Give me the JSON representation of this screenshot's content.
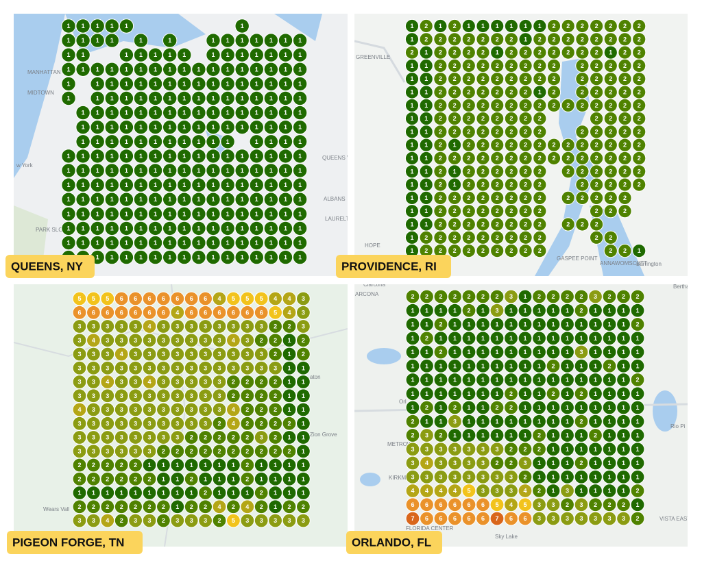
{
  "colors": [
    "#1f6a00",
    "#4f8200",
    "#8b9c12",
    "#b4a616",
    "#f2c31c",
    "#ea922a",
    "#d9661b"
  ],
  "panels": [
    {
      "label": "QUEENS, NY",
      "map_labels": [
        "MANHATTAN",
        "MIDTOWN",
        "PARK SLOPE",
        "w York",
        "QUEENS VILL",
        "ALBANS",
        "LAURELTON"
      ],
      "grid": [
        [
          1,
          1,
          1,
          1,
          1,
          null,
          null,
          null,
          null,
          null,
          null,
          null,
          1,
          null,
          null,
          null,
          null
        ],
        [
          1,
          1,
          1,
          1,
          null,
          1,
          null,
          1,
          null,
          null,
          1,
          1,
          1,
          1,
          1,
          1,
          1
        ],
        [
          1,
          1,
          null,
          null,
          1,
          1,
          1,
          1,
          1,
          null,
          1,
          1,
          1,
          1,
          1,
          1,
          1
        ],
        [
          1,
          1,
          1,
          1,
          1,
          1,
          1,
          1,
          1,
          1,
          1,
          1,
          1,
          1,
          1,
          1,
          1
        ],
        [
          1,
          null,
          1,
          1,
          1,
          1,
          1,
          1,
          1,
          1,
          1,
          1,
          1,
          1,
          1,
          1,
          1
        ],
        [
          1,
          null,
          1,
          1,
          1,
          1,
          1,
          1,
          1,
          1,
          1,
          1,
          1,
          1,
          1,
          1,
          1
        ],
        [
          null,
          1,
          1,
          1,
          1,
          1,
          1,
          1,
          1,
          1,
          1,
          1,
          1,
          1,
          1,
          1,
          1
        ],
        [
          null,
          1,
          1,
          1,
          1,
          1,
          1,
          1,
          1,
          1,
          1,
          1,
          1,
          1,
          1,
          1,
          1
        ],
        [
          null,
          1,
          1,
          1,
          1,
          1,
          1,
          1,
          1,
          1,
          1,
          1,
          null,
          1,
          1,
          1,
          1
        ],
        [
          1,
          1,
          1,
          1,
          1,
          1,
          1,
          1,
          1,
          1,
          1,
          1,
          1,
          1,
          1,
          1,
          1
        ],
        [
          1,
          1,
          1,
          1,
          1,
          1,
          1,
          1,
          1,
          1,
          1,
          1,
          1,
          1,
          1,
          1,
          1
        ],
        [
          1,
          1,
          1,
          1,
          1,
          1,
          1,
          1,
          1,
          1,
          1,
          1,
          1,
          1,
          1,
          1,
          1
        ],
        [
          1,
          1,
          1,
          1,
          1,
          1,
          1,
          1,
          1,
          1,
          1,
          1,
          1,
          1,
          1,
          1,
          1
        ],
        [
          1,
          1,
          1,
          1,
          1,
          1,
          1,
          1,
          1,
          1,
          1,
          1,
          1,
          1,
          1,
          1,
          1
        ],
        [
          1,
          1,
          1,
          1,
          1,
          1,
          1,
          1,
          1,
          1,
          1,
          1,
          1,
          1,
          1,
          1,
          1
        ],
        [
          1,
          1,
          1,
          1,
          1,
          1,
          1,
          1,
          1,
          1,
          1,
          1,
          1,
          1,
          1,
          1,
          1
        ],
        [
          1,
          1,
          1,
          1,
          1,
          1,
          1,
          1,
          1,
          1,
          1,
          1,
          1,
          1,
          1,
          1,
          1
        ]
      ]
    },
    {
      "label": "PROVIDENCE, RI",
      "map_labels": [
        "GREENVILLE",
        "HOPE",
        "GASPEE POINT",
        "ANNAWOMSCUTT",
        "Barrington"
      ],
      "grid": [
        [
          1,
          2,
          1,
          2,
          1,
          1,
          1,
          1,
          1,
          1,
          2,
          2,
          2,
          2,
          2,
          2,
          2
        ],
        [
          1,
          2,
          2,
          2,
          2,
          2,
          2,
          2,
          1,
          2,
          2,
          2,
          2,
          2,
          2,
          2,
          2
        ],
        [
          2,
          1,
          2,
          2,
          2,
          2,
          1,
          2,
          2,
          2,
          2,
          2,
          2,
          2,
          1,
          2,
          2
        ],
        [
          1,
          1,
          2,
          2,
          2,
          2,
          2,
          2,
          2,
          2,
          2,
          null,
          2,
          2,
          2,
          2,
          2
        ],
        [
          1,
          1,
          2,
          2,
          2,
          2,
          2,
          2,
          2,
          2,
          2,
          null,
          2,
          2,
          2,
          2,
          2
        ],
        [
          1,
          1,
          2,
          2,
          2,
          2,
          2,
          2,
          2,
          1,
          2,
          null,
          2,
          2,
          2,
          2,
          2
        ],
        [
          1,
          1,
          2,
          2,
          2,
          2,
          2,
          2,
          2,
          2,
          2,
          2,
          2,
          2,
          2,
          2,
          2
        ],
        [
          1,
          1,
          2,
          2,
          2,
          2,
          2,
          2,
          2,
          2,
          null,
          null,
          null,
          2,
          2,
          2,
          2
        ],
        [
          1,
          1,
          2,
          2,
          2,
          2,
          2,
          2,
          2,
          2,
          null,
          null,
          2,
          2,
          2,
          2,
          2
        ],
        [
          1,
          1,
          2,
          1,
          2,
          2,
          2,
          2,
          2,
          2,
          2,
          2,
          2,
          2,
          2,
          2,
          2
        ],
        [
          1,
          1,
          2,
          2,
          2,
          2,
          2,
          2,
          2,
          2,
          2,
          2,
          2,
          2,
          2,
          2,
          2
        ],
        [
          1,
          1,
          2,
          1,
          2,
          2,
          2,
          2,
          2,
          2,
          null,
          2,
          2,
          2,
          2,
          2,
          2
        ],
        [
          1,
          1,
          2,
          1,
          2,
          2,
          2,
          2,
          2,
          2,
          null,
          null,
          2,
          2,
          2,
          2,
          2
        ],
        [
          1,
          1,
          2,
          2,
          2,
          2,
          2,
          2,
          2,
          2,
          null,
          2,
          2,
          2,
          2,
          2,
          null
        ],
        [
          1,
          1,
          2,
          2,
          2,
          2,
          2,
          2,
          2,
          2,
          null,
          null,
          null,
          2,
          2,
          2,
          null
        ],
        [
          1,
          1,
          2,
          2,
          2,
          2,
          2,
          2,
          2,
          2,
          null,
          2,
          2,
          2,
          null,
          null,
          null
        ],
        [
          1,
          2,
          2,
          2,
          2,
          2,
          2,
          2,
          2,
          2,
          null,
          null,
          null,
          2,
          2,
          null,
          null
        ],
        [
          1,
          2,
          2,
          2,
          2,
          2,
          2,
          2,
          2,
          2,
          null,
          null,
          null,
          null,
          2,
          2,
          1
        ]
      ]
    },
    {
      "label": "PIGEON FORGE, TN",
      "map_labels": [
        "aton",
        "Zion Grove",
        "Wears Vall"
      ],
      "grid": [
        [
          5,
          5,
          5,
          6,
          6,
          6,
          6,
          6,
          6,
          6,
          4,
          5,
          5,
          5,
          4,
          4,
          3
        ],
        [
          6,
          6,
          6,
          6,
          6,
          6,
          6,
          4,
          6,
          6,
          6,
          6,
          6,
          6,
          5,
          4,
          3
        ],
        [
          3,
          3,
          3,
          3,
          3,
          4,
          3,
          3,
          3,
          3,
          3,
          3,
          3,
          3,
          2,
          2,
          3
        ],
        [
          3,
          4,
          3,
          3,
          3,
          3,
          3,
          3,
          3,
          3,
          3,
          4,
          3,
          2,
          2,
          1,
          2
        ],
        [
          3,
          3,
          3,
          4,
          3,
          3,
          3,
          3,
          3,
          3,
          3,
          3,
          3,
          3,
          2,
          1,
          2
        ],
        [
          3,
          3,
          3,
          3,
          3,
          3,
          3,
          3,
          3,
          3,
          3,
          3,
          3,
          3,
          3,
          1,
          1
        ],
        [
          3,
          3,
          4,
          3,
          3,
          4,
          3,
          3,
          3,
          3,
          3,
          2,
          2,
          2,
          2,
          1,
          1
        ],
        [
          3,
          3,
          3,
          3,
          3,
          3,
          3,
          3,
          3,
          3,
          3,
          2,
          2,
          2,
          2,
          1,
          1
        ],
        [
          4,
          3,
          3,
          3,
          3,
          3,
          3,
          3,
          3,
          3,
          3,
          4,
          2,
          2,
          2,
          1,
          1
        ],
        [
          3,
          3,
          3,
          3,
          3,
          3,
          3,
          3,
          3,
          3,
          2,
          4,
          2,
          2,
          2,
          2,
          1
        ],
        [
          3,
          3,
          3,
          3,
          3,
          3,
          3,
          3,
          2,
          2,
          2,
          2,
          2,
          3,
          2,
          1,
          1
        ],
        [
          3,
          3,
          3,
          3,
          3,
          3,
          2,
          2,
          2,
          2,
          2,
          2,
          2,
          2,
          2,
          2,
          1
        ],
        [
          2,
          2,
          2,
          2,
          2,
          1,
          1,
          1,
          1,
          1,
          1,
          1,
          2,
          1,
          1,
          1,
          1
        ],
        [
          2,
          2,
          2,
          2,
          2,
          2,
          1,
          1,
          2,
          1,
          1,
          1,
          2,
          1,
          1,
          1,
          1
        ],
        [
          1,
          1,
          1,
          1,
          1,
          1,
          1,
          1,
          1,
          2,
          1,
          1,
          1,
          2,
          1,
          1,
          1
        ],
        [
          2,
          2,
          2,
          2,
          2,
          2,
          2,
          1,
          2,
          2,
          4,
          2,
          4,
          2,
          1,
          2,
          2
        ],
        [
          3,
          3,
          4,
          2,
          3,
          3,
          2,
          3,
          3,
          3,
          2,
          5,
          3,
          3,
          3,
          3,
          3
        ]
      ]
    },
    {
      "label": "ORLANDO, FL",
      "map_labels": [
        "Clarcona",
        "ARCONA",
        "Bertha",
        "Orl",
        "Rio Pi",
        "METROW",
        "KIRKMA",
        "FLORIDA CENTER",
        "Sky Lake",
        "VISTA EAST"
      ],
      "grid": [
        [
          2,
          2,
          2,
          2,
          2,
          2,
          2,
          3,
          1,
          2,
          2,
          2,
          2,
          3,
          2,
          2,
          2
        ],
        [
          1,
          1,
          1,
          1,
          2,
          1,
          3,
          1,
          1,
          1,
          1,
          1,
          2,
          1,
          1,
          1,
          1
        ],
        [
          1,
          1,
          2,
          1,
          1,
          1,
          1,
          1,
          1,
          1,
          1,
          1,
          1,
          1,
          1,
          1,
          2
        ],
        [
          1,
          2,
          1,
          1,
          1,
          1,
          1,
          1,
          1,
          1,
          1,
          1,
          1,
          1,
          1,
          1,
          1
        ],
        [
          1,
          1,
          2,
          1,
          1,
          1,
          1,
          1,
          1,
          1,
          1,
          1,
          3,
          1,
          1,
          1,
          1
        ],
        [
          1,
          1,
          1,
          1,
          1,
          1,
          1,
          1,
          1,
          1,
          2,
          1,
          1,
          1,
          2,
          1,
          1
        ],
        [
          1,
          1,
          1,
          1,
          1,
          1,
          1,
          1,
          1,
          1,
          1,
          1,
          1,
          1,
          1,
          1,
          2
        ],
        [
          1,
          1,
          1,
          1,
          1,
          1,
          1,
          2,
          1,
          1,
          2,
          1,
          2,
          1,
          1,
          1,
          1
        ],
        [
          1,
          2,
          1,
          2,
          1,
          1,
          2,
          2,
          1,
          1,
          1,
          1,
          1,
          1,
          1,
          1,
          1
        ],
        [
          2,
          1,
          1,
          3,
          1,
          1,
          1,
          1,
          1,
          1,
          1,
          1,
          2,
          1,
          1,
          1,
          1
        ],
        [
          2,
          3,
          2,
          1,
          1,
          1,
          1,
          1,
          1,
          2,
          1,
          1,
          1,
          2,
          1,
          1,
          1
        ],
        [
          3,
          3,
          3,
          3,
          3,
          3,
          3,
          2,
          2,
          2,
          1,
          1,
          1,
          1,
          1,
          1,
          1
        ],
        [
          3,
          4,
          3,
          3,
          3,
          3,
          2,
          2,
          3,
          1,
          1,
          1,
          2,
          1,
          1,
          1,
          1
        ],
        [
          3,
          3,
          3,
          3,
          3,
          3,
          3,
          3,
          2,
          1,
          1,
          1,
          1,
          1,
          1,
          1,
          1
        ],
        [
          4,
          4,
          4,
          4,
          5,
          3,
          3,
          3,
          4,
          2,
          1,
          3,
          1,
          1,
          1,
          1,
          2
        ],
        [
          6,
          6,
          6,
          6,
          6,
          6,
          5,
          4,
          5,
          3,
          3,
          2,
          3,
          2,
          2,
          2,
          1
        ],
        [
          7,
          6,
          6,
          6,
          6,
          6,
          7,
          6,
          6,
          3,
          3,
          3,
          3,
          3,
          3,
          3,
          2
        ]
      ]
    }
  ]
}
